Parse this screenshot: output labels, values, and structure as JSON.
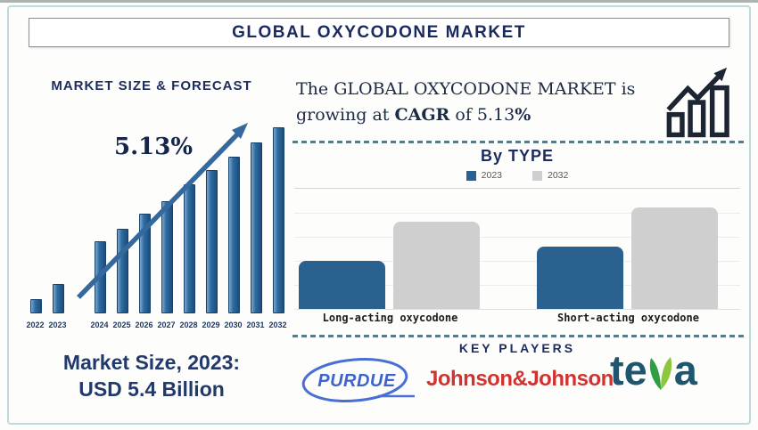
{
  "page_title": "GLOBAL OXYCODONE MARKET",
  "forecast": {
    "heading": "MARKET SIZE & FORECAST",
    "cagr_label": "5.13%",
    "market_size_line1": "Market Size, 2023:",
    "market_size_line2": "USD 5.4 Billion"
  },
  "growth_statement": {
    "line1": "The GLOBAL OXYCODONE MARKET is",
    "line2_prefix": "growing at ",
    "cagr_word": "CAGR",
    "line2_middle": " of 5.13",
    "percent_sign": "%"
  },
  "by_type": {
    "heading": "By TYPE"
  },
  "key_players": {
    "heading": "KEY PLAYERS",
    "logos": [
      {
        "name": "Purdue",
        "text": "PURDUE"
      },
      {
        "name": "Johnson & Johnson",
        "text": "Johnson&Johnson"
      },
      {
        "name": "Teva",
        "text_left": "te",
        "text_right": "a"
      }
    ]
  },
  "colors": {
    "navy_text": "#1d2c5e",
    "bar_blue": "#2a618f",
    "bar_gray": "#cfcfcf",
    "arrow_blue": "#35689c",
    "dash_teal": "#567c8b",
    "card_border": "#bedadd",
    "jnj_red": "#cf3430",
    "purdue_blue": "#3f63cd",
    "teva_teal": "#1f566f",
    "teva_leaf_dark": "#2f9e41",
    "teva_leaf_light": "#8dc63f"
  },
  "chart_data": [
    {
      "type": "bar",
      "title": "MARKET SIZE & FORECAST",
      "categories": [
        "2022",
        "2023",
        "2024",
        "2025",
        "2026",
        "2027",
        "2028",
        "2029",
        "2030",
        "2031",
        "2032"
      ],
      "values_relative": [
        7,
        15,
        38,
        45,
        53,
        60,
        69,
        77,
        84,
        92,
        100
      ],
      "units": "relative height (no y-axis shown)",
      "annotation": "5.13%",
      "bar_color": "#2f6ba0",
      "known_point": {
        "year": "2023",
        "value": "USD 5.4 Billion"
      },
      "xlabel": "",
      "ylabel": "",
      "grid": false
    },
    {
      "type": "bar",
      "title": "By TYPE",
      "categories": [
        "Long-acting oxycodone",
        "Short-acting oxycodone"
      ],
      "series": [
        {
          "name": "2023",
          "color": "#2a618f",
          "values_relative": [
            47,
            61
          ]
        },
        {
          "name": "2032",
          "color": "#cfcfcf",
          "values_relative": [
            86,
            100
          ]
        }
      ],
      "units": "relative height (no y-axis shown)",
      "legend_position": "top",
      "grid": true,
      "xlabel": "",
      "ylabel": ""
    }
  ]
}
